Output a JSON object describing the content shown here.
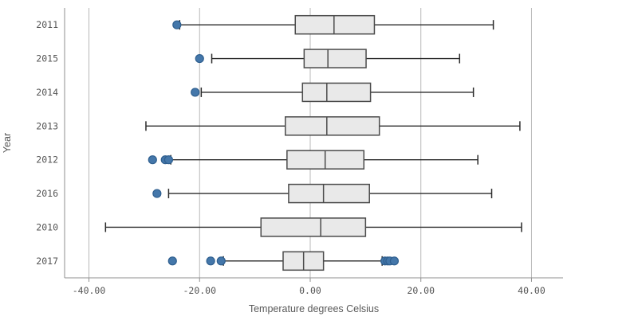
{
  "chart_data": {
    "type": "boxplot",
    "orientation": "horizontal",
    "x_axis_title": "Temperature degrees Celsius",
    "y_axis_title": "Year",
    "xlim": [
      -44.4,
      45.7
    ],
    "grid": true,
    "x_ticks": [
      {
        "value": -40,
        "label": "-40.00"
      },
      {
        "value": -20,
        "label": "-20.00"
      },
      {
        "value": 0,
        "label": "0.00"
      },
      {
        "value": 20,
        "label": "20.00"
      },
      {
        "value": 40,
        "label": "40.00"
      }
    ],
    "categories": [
      "2011",
      "2015",
      "2014",
      "2013",
      "2012",
      "2016",
      "2010",
      "2017"
    ],
    "series": [
      {
        "year": "2011",
        "outliers_low": [
          -24.1
        ],
        "whisker_low": -23.6,
        "q1": -2.7,
        "median": 4.3,
        "q3": 11.6,
        "whisker_high": 33.1,
        "outliers_high": []
      },
      {
        "year": "2015",
        "outliers_low": [
          -20.0
        ],
        "whisker_low": -17.8,
        "q1": -1.1,
        "median": 3.2,
        "q3": 10.1,
        "whisker_high": 27.0,
        "outliers_high": []
      },
      {
        "year": "2014",
        "outliers_low": [
          -20.8
        ],
        "whisker_low": -19.7,
        "q1": -1.4,
        "median": 3.0,
        "q3": 10.9,
        "whisker_high": 29.5,
        "outliers_high": []
      },
      {
        "year": "2013",
        "outliers_low": [],
        "whisker_low": -29.7,
        "q1": -4.5,
        "median": 3.0,
        "q3": 12.5,
        "whisker_high": 37.9,
        "outliers_high": []
      },
      {
        "year": "2012",
        "outliers_low": [
          -28.5,
          -26.2,
          -25.6
        ],
        "whisker_low": -25.2,
        "q1": -4.2,
        "median": 2.7,
        "q3": 9.7,
        "whisker_high": 30.3,
        "outliers_high": []
      },
      {
        "year": "2016",
        "outliers_low": [
          -27.7
        ],
        "whisker_low": -25.6,
        "q1": -3.9,
        "median": 2.4,
        "q3": 10.7,
        "whisker_high": 32.8,
        "outliers_high": []
      },
      {
        "year": "2010",
        "outliers_low": [],
        "whisker_low": -37.0,
        "q1": -8.9,
        "median": 1.9,
        "q3": 10.0,
        "whisker_high": 38.2,
        "outliers_high": []
      },
      {
        "year": "2017",
        "outliers_low": [
          -24.9,
          -18.0,
          -16.1
        ],
        "whisker_low": -15.7,
        "q1": -4.9,
        "median": -1.2,
        "q3": 2.4,
        "whisker_high": 13.0,
        "outliers_high": [
          13.5,
          14.0,
          14.4,
          15.2
        ]
      }
    ],
    "colors": {
      "box_fill": "#e9e9e9",
      "box_stroke": "#4b4b4b",
      "median_stroke": "#4b4b4b",
      "whisker_stroke": "#2b2b2b",
      "outlier_fill": "#4477aa",
      "outlier_stroke": "#2f5f8f",
      "gridline": "#b8b8b8",
      "axis_line": "#8f8f8f",
      "label_text": "#545454"
    }
  }
}
